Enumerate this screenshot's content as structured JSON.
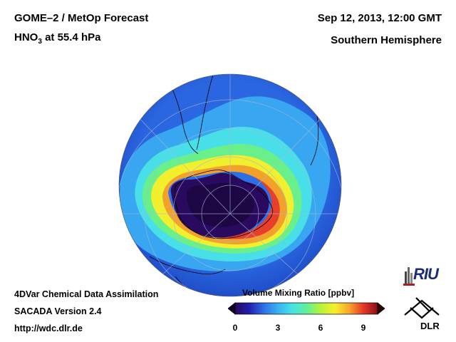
{
  "title": {
    "instrument": "GOME–2 / MetOp Forecast",
    "species_main": "HNO",
    "species_sub": "3",
    "level": " at 55.4 hPa",
    "date": "Sep 12, 2013, 12:00 GMT",
    "region": "Southern Hemisphere"
  },
  "footer": {
    "line1": "4DVar Chemical Data Assimilation",
    "line2": "SACADA Version 2.4",
    "line3": "http://wdc.dlr.de"
  },
  "colorbar": {
    "title": "Volume Mixing Ratio [ppbv]",
    "ticks": [
      "0",
      "3",
      "6",
      "9"
    ],
    "tick_values": [
      0,
      3,
      6,
      9
    ],
    "range": [
      0,
      10
    ],
    "colors": [
      "#2a0a5e",
      "#2020b0",
      "#2f6fe6",
      "#3ab0f0",
      "#46e3e6",
      "#5ef09a",
      "#b6f23a",
      "#f6f02a",
      "#f6a62a",
      "#e6382a",
      "#8a0f14"
    ],
    "under_color": "#140028",
    "over_color": "#2a0508"
  },
  "logos": {
    "riu": "RIU",
    "dlr": "DLR"
  },
  "colors": {
    "globe_background": "#1f4fd8",
    "ozone_hole_core": "#2a0a5e"
  }
}
